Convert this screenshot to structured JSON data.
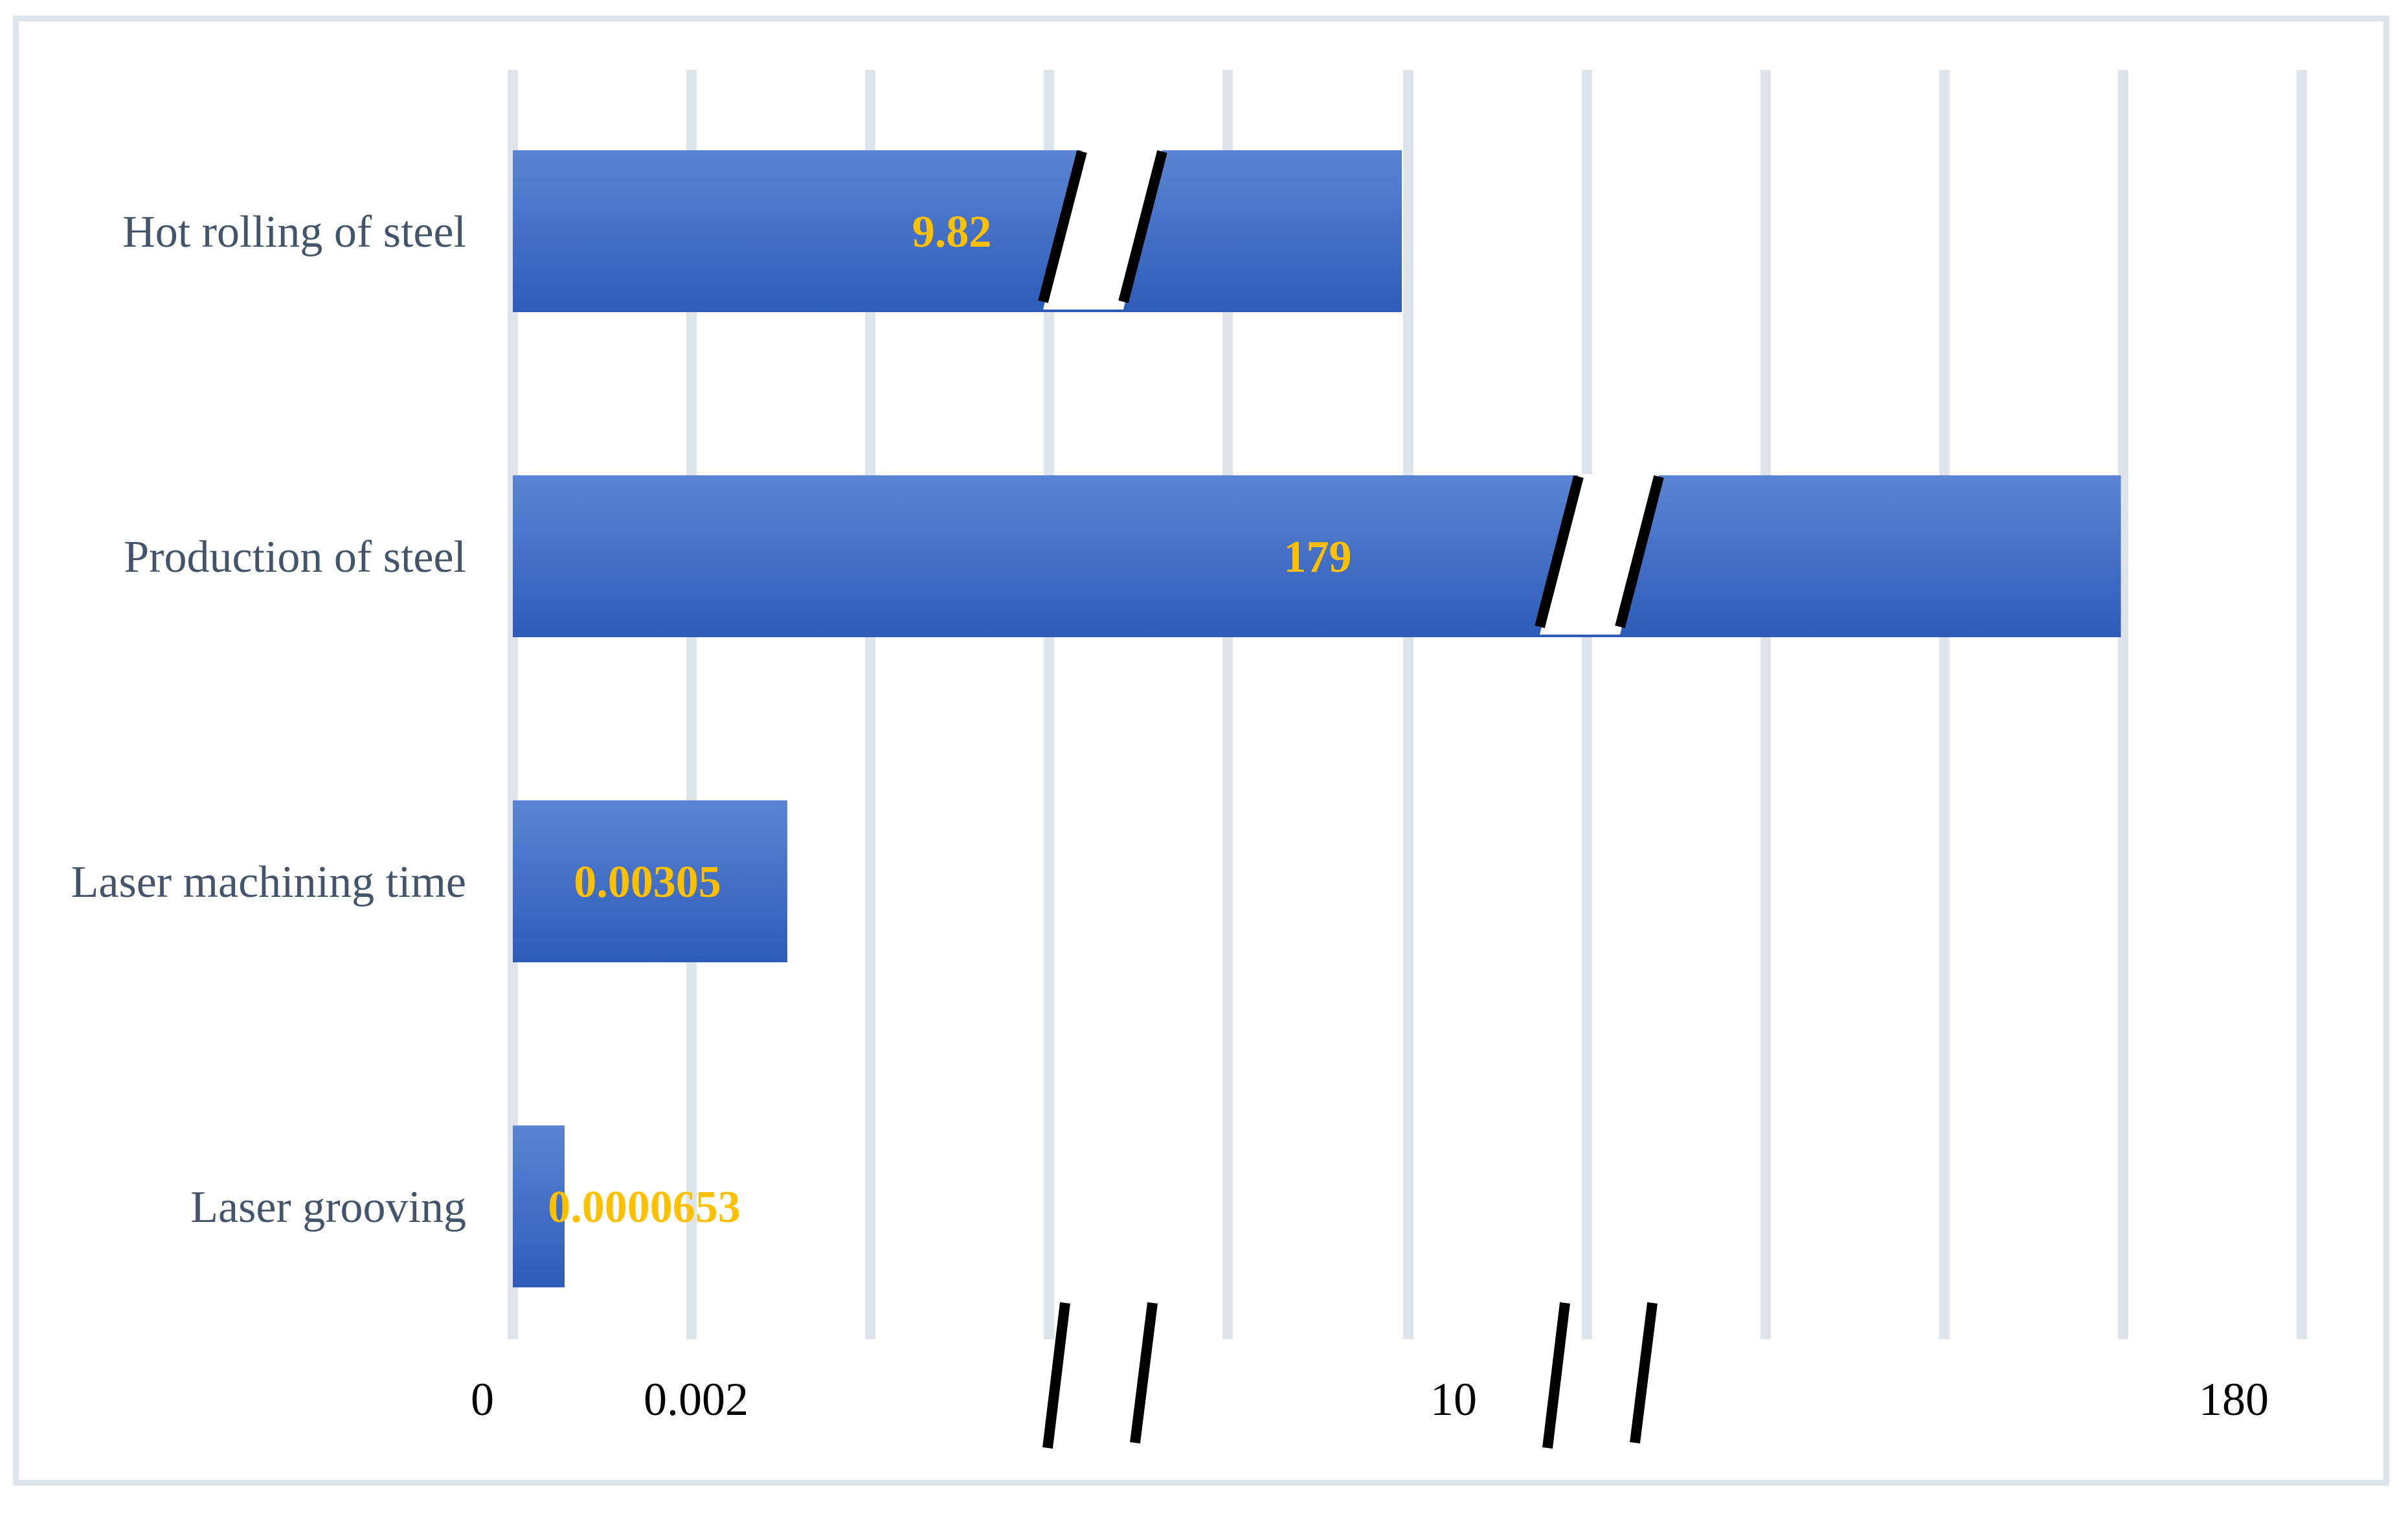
{
  "chart_data": {
    "type": "bar",
    "orientation": "horizontal",
    "categories": [
      "Hot rolling of steel",
      "Production of steel",
      "Laser machining time",
      "Laser grooving"
    ],
    "values": [
      9.82,
      179,
      0.00305,
      6.53e-05
    ],
    "data_labels": [
      "9.82",
      "179",
      "0.00305",
      "0.0000653"
    ],
    "tick_labels": [
      "0",
      "0.002",
      "10",
      "180"
    ],
    "axis_breaks": true,
    "grid": true,
    "title": "",
    "xlabel": "",
    "ylabel": "",
    "colors": {
      "bar_top": "#5b84d3",
      "bar_bottom": "#2d5cb8",
      "grid": "#dfe3ea",
      "label": "#44546a",
      "data_label": "#ffc000"
    }
  }
}
